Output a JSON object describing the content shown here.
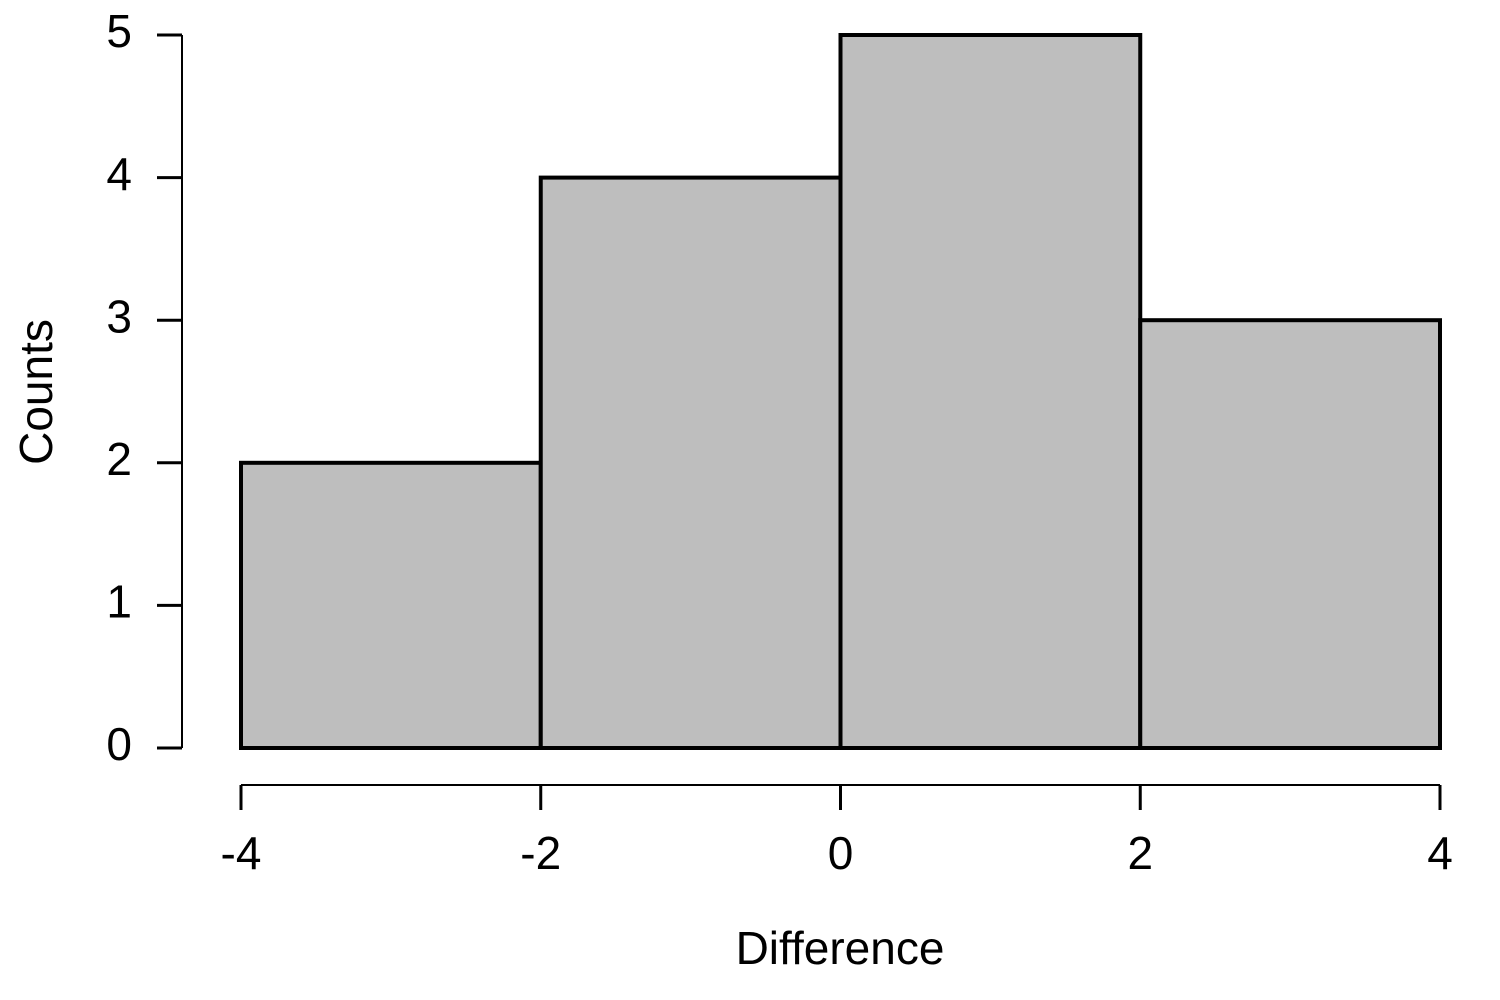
{
  "chart_data": {
    "type": "histogram",
    "bins": [
      -4,
      -2,
      0,
      2,
      4
    ],
    "values": [
      2,
      4,
      5,
      3
    ],
    "color": "#bebebe",
    "xlabel": "Difference",
    "ylabel": "Counts",
    "xlim": [
      -4,
      4
    ],
    "xticks": [
      -4,
      -2,
      0,
      2,
      4
    ],
    "ylim": [
      0,
      5
    ],
    "yticks": [
      0,
      1,
      2,
      3,
      4,
      5
    ]
  }
}
